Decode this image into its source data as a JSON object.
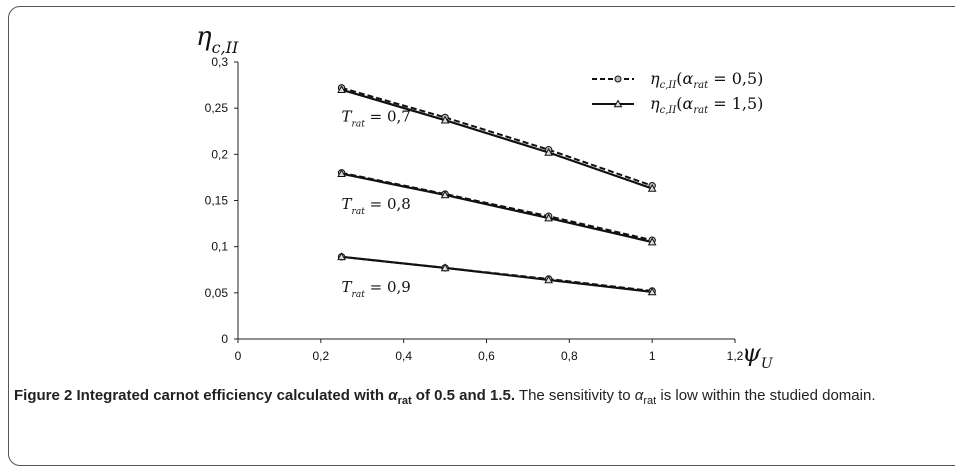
{
  "chart_data": {
    "type": "line",
    "title": "",
    "ylabel": "η",
    "ylabel_sub": "c,II",
    "xlabel": "ψ",
    "xlabel_sub": "U",
    "xlim": [
      0,
      1.2
    ],
    "ylim": [
      0,
      0.3
    ],
    "xticks": [
      "0",
      "0,2",
      "0,4",
      "0,6",
      "0,8",
      "1",
      "1,2"
    ],
    "yticks": [
      "0",
      "0,05",
      "0,1",
      "0,15",
      "0,2",
      "0,25",
      "0,3"
    ],
    "legend": {
      "placement": "top-right",
      "entries": [
        {
          "symbol": "η",
          "sub": "c,II",
          "arg": "α",
          "arg_sub": "rat",
          "value": "= 0,5",
          "style": "dashed",
          "marker": "circle"
        },
        {
          "symbol": "η",
          "sub": "c,II",
          "arg": "α",
          "arg_sub": "rat",
          "value": "= 1,5",
          "style": "solid",
          "marker": "triangle"
        }
      ]
    },
    "groups": [
      {
        "label_sym": "T",
        "label_sub": "rat",
        "label_val": "= 0,7",
        "label_at": [
          0.25,
          0.24
        ]
      },
      {
        "label_sym": "T",
        "label_sub": "rat",
        "label_val": "= 0,8",
        "label_at": [
          0.25,
          0.145
        ]
      },
      {
        "label_sym": "T",
        "label_sub": "rat",
        "label_val": "= 0,9",
        "label_at": [
          0.25,
          0.055
        ]
      }
    ],
    "x": [
      0.25,
      0.5,
      0.75,
      1.0
    ],
    "series": [
      {
        "name": "η_c,II(α_rat=0,5) T_rat=0,7",
        "style": "dashed",
        "marker": "circle",
        "values": [
          0.272,
          0.24,
          0.205,
          0.166
        ]
      },
      {
        "name": "η_c,II(α_rat=1,5) T_rat=0,7",
        "style": "solid",
        "marker": "triangle",
        "values": [
          0.27,
          0.237,
          0.202,
          0.163
        ]
      },
      {
        "name": "η_c,II(α_rat=0,5) T_rat=0,8",
        "style": "dashed",
        "marker": "circle",
        "values": [
          0.18,
          0.157,
          0.133,
          0.107
        ]
      },
      {
        "name": "η_c,II(α_rat=1,5) T_rat=0,8",
        "style": "solid",
        "marker": "triangle",
        "values": [
          0.179,
          0.156,
          0.131,
          0.105
        ]
      },
      {
        "name": "η_c,II(α_rat=0,5) T_rat=0,9",
        "style": "dashed",
        "marker": "circle",
        "values": [
          0.089,
          0.077,
          0.065,
          0.052
        ]
      },
      {
        "name": "η_c,II(α_rat=1,5) T_rat=0,9",
        "style": "solid",
        "marker": "triangle",
        "values": [
          0.089,
          0.077,
          0.064,
          0.051
        ]
      }
    ]
  },
  "caption": {
    "bold_prefix": "Figure 2 Integrated carnot efficiency calculated with ",
    "bold_alpha": "α",
    "bold_alpha_sub": "rat",
    "bold_suffix": " of 0.5 and 1.5.",
    "normal_prefix": " The sensitivity to ",
    "normal_alpha": "α",
    "normal_alpha_sub": "rat",
    "normal_suffix": " is low within the studied domain."
  }
}
